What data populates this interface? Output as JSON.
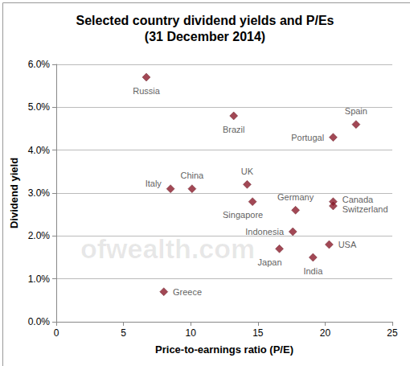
{
  "chart_data": {
    "type": "scatter",
    "title": "Selected country dividend yields and P/Es",
    "subtitle": "(31 December 2014)",
    "x_label": "Price-to-earnings ratio (P/E)",
    "y_label": "Dividend yield",
    "annotations": [
      "ofwealth.com"
    ],
    "series": [
      {
        "names": [
          "Russia",
          "Brazil",
          "Spain",
          "Portugal",
          "Italy",
          "China",
          "UK",
          "Singapore",
          "Germany",
          "Canada",
          "Switzerland",
          "Indonesia",
          "Japan",
          "USA",
          "India",
          "Greece"
        ],
        "x": [
          6.7,
          13.2,
          22.3,
          20.6,
          8.5,
          10.1,
          14.2,
          14.6,
          17.8,
          20.6,
          20.6,
          17.6,
          16.6,
          20.3,
          19.1,
          8.0
        ],
        "values": [
          5.7,
          4.8,
          4.6,
          4.3,
          3.1,
          3.1,
          3.2,
          2.8,
          2.6,
          2.8,
          2.7,
          2.1,
          1.7,
          1.8,
          1.5,
          0.7
        ],
        "color": "#8b1a2b",
        "marker": "diamond"
      }
    ],
    "xlim": [
      0,
      25
    ],
    "xticks": [
      0,
      5,
      10,
      15,
      20,
      25
    ],
    "ylim": [
      0,
      6
    ],
    "yticks": [
      {
        "value": 0,
        "label": "0.0%"
      },
      {
        "value": 1,
        "label": "1.0%"
      },
      {
        "value": 2,
        "label": "2.0%"
      },
      {
        "value": 3,
        "label": "3.0%"
      },
      {
        "value": 4,
        "label": "4.0%"
      },
      {
        "value": 5,
        "label": "5.0%"
      },
      {
        "value": 6,
        "label": "6.0%"
      }
    ],
    "grid": "y"
  }
}
